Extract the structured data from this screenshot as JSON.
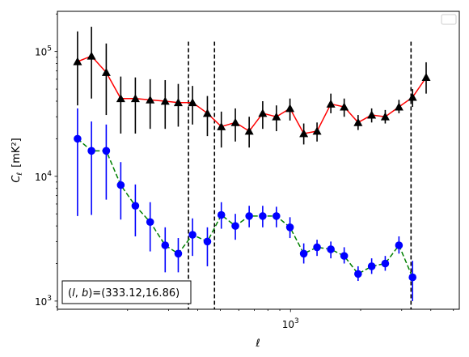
{
  "chart_data": {
    "type": "scatter",
    "title": "",
    "xlabel": "ℓ",
    "ylabel": "C",
    "ylabel_sub": "ℓ",
    "ylabel_unit": "[mK²]",
    "xscale": "log",
    "yscale": "log",
    "xlim": [
      100,
      5300
    ],
    "ylim": [
      860,
      210000
    ],
    "x_tick_labels": [
      {
        "value": 1000,
        "base": "10",
        "exp": "3"
      }
    ],
    "y_tick_labels": [
      {
        "value": 1000,
        "base": "10",
        "exp": "3"
      },
      {
        "value": 10000,
        "base": "10",
        "exp": "4"
      },
      {
        "value": 100000,
        "base": "10",
        "exp": "5"
      }
    ],
    "grid": false,
    "legend": "top-right (empty)",
    "annotation": {
      "text_prefix": "(",
      "text_l": "l",
      "text_mid": ", ",
      "text_b": "b",
      "text_suffix": ")=(333.12,16.86)",
      "position": "bottom-left"
    },
    "vertical_lines": [
      {
        "x": 365,
        "y_top": 120000,
        "color": "#000000",
        "style": "dashed"
      },
      {
        "x": 472,
        "y_top": 120000,
        "color": "#000000",
        "style": "dashed"
      },
      {
        "x": 3290,
        "y_top": 120000,
        "color": "#000000",
        "style": "dashed"
      }
    ],
    "series": [
      {
        "marker": "triangle",
        "color": "#000000",
        "line_color": "#ff0000",
        "line_style": "solid",
        "points": [
          {
            "x": 122,
            "y": 83000,
            "lo": 37000,
            "hi": 145000
          },
          {
            "x": 140,
            "y": 92000,
            "lo": 42000,
            "hi": 158000
          },
          {
            "x": 162,
            "y": 68000,
            "lo": 31000,
            "hi": 116000
          },
          {
            "x": 187,
            "y": 42000,
            "lo": 22000,
            "hi": 63000
          },
          {
            "x": 216,
            "y": 42000,
            "lo": 22000,
            "hi": 62000
          },
          {
            "x": 250,
            "y": 41000,
            "lo": 24000,
            "hi": 60000
          },
          {
            "x": 290,
            "y": 40000,
            "lo": 24000,
            "hi": 59000
          },
          {
            "x": 330,
            "y": 39000,
            "lo": 25000,
            "hi": 55000
          },
          {
            "x": 380,
            "y": 39000,
            "lo": 26000,
            "hi": 53000
          },
          {
            "x": 440,
            "y": 32000,
            "lo": 21000,
            "hi": 44000
          },
          {
            "x": 505,
            "y": 25000,
            "lo": 17000,
            "hi": 33000
          },
          {
            "x": 580,
            "y": 27000,
            "lo": 19000,
            "hi": 35000
          },
          {
            "x": 665,
            "y": 23000,
            "lo": 17000,
            "hi": 30000
          },
          {
            "x": 760,
            "y": 32000,
            "lo": 24000,
            "hi": 40000
          },
          {
            "x": 870,
            "y": 30000,
            "lo": 23000,
            "hi": 37000
          },
          {
            "x": 995,
            "y": 35000,
            "lo": 28000,
            "hi": 42000
          },
          {
            "x": 1140,
            "y": 22000,
            "lo": 18000,
            "hi": 26500
          },
          {
            "x": 1300,
            "y": 23000,
            "lo": 19000,
            "hi": 27000
          },
          {
            "x": 1490,
            "y": 38000,
            "lo": 32000,
            "hi": 46000
          },
          {
            "x": 1700,
            "y": 36000,
            "lo": 30000,
            "hi": 42000
          },
          {
            "x": 1950,
            "y": 27000,
            "lo": 23500,
            "hi": 31000
          },
          {
            "x": 2230,
            "y": 31000,
            "lo": 27000,
            "hi": 35000
          },
          {
            "x": 2550,
            "y": 30000,
            "lo": 26500,
            "hi": 34000
          },
          {
            "x": 2920,
            "y": 36000,
            "lo": 32000,
            "hi": 41000
          },
          {
            "x": 3340,
            "y": 43000,
            "lo": 36000,
            "hi": 50000
          },
          {
            "x": 3820,
            "y": 62000,
            "lo": 46000,
            "hi": 82000
          }
        ]
      },
      {
        "marker": "circle",
        "color": "#0000ff",
        "line_color": "#008000",
        "line_style": "dashed",
        "points": [
          {
            "x": 122,
            "y": 20000,
            "lo": 4800,
            "hi": 35000
          },
          {
            "x": 140,
            "y": 16000,
            "lo": 4900,
            "hi": 27500
          },
          {
            "x": 162,
            "y": 16000,
            "lo": 6500,
            "hi": 26000
          },
          {
            "x": 187,
            "y": 8500,
            "lo": 4500,
            "hi": 13000
          },
          {
            "x": 216,
            "y": 5800,
            "lo": 3300,
            "hi": 8600
          },
          {
            "x": 250,
            "y": 4300,
            "lo": 2500,
            "hi": 6200
          },
          {
            "x": 290,
            "y": 2800,
            "lo": 1700,
            "hi": 3900
          },
          {
            "x": 330,
            "y": 2400,
            "lo": 1700,
            "hi": 3200
          },
          {
            "x": 380,
            "y": 3400,
            "lo": 2300,
            "hi": 4600
          },
          {
            "x": 440,
            "y": 3000,
            "lo": 1900,
            "hi": 3900
          },
          {
            "x": 505,
            "y": 4900,
            "lo": 3800,
            "hi": 6200
          },
          {
            "x": 580,
            "y": 4000,
            "lo": 3100,
            "hi": 5000
          },
          {
            "x": 665,
            "y": 4800,
            "lo": 3900,
            "hi": 5800
          },
          {
            "x": 760,
            "y": 4800,
            "lo": 3900,
            "hi": 5800
          },
          {
            "x": 870,
            "y": 4800,
            "lo": 3900,
            "hi": 5700
          },
          {
            "x": 995,
            "y": 3900,
            "lo": 3200,
            "hi": 4700
          },
          {
            "x": 1140,
            "y": 2400,
            "lo": 2000,
            "hi": 2900
          },
          {
            "x": 1300,
            "y": 2700,
            "lo": 2300,
            "hi": 3100
          },
          {
            "x": 1490,
            "y": 2600,
            "lo": 2200,
            "hi": 3000
          },
          {
            "x": 1700,
            "y": 2300,
            "lo": 2000,
            "hi": 2700
          },
          {
            "x": 1950,
            "y": 1650,
            "lo": 1450,
            "hi": 1900
          },
          {
            "x": 2230,
            "y": 1900,
            "lo": 1650,
            "hi": 2200
          },
          {
            "x": 2550,
            "y": 2000,
            "lo": 1750,
            "hi": 2300
          },
          {
            "x": 2920,
            "y": 2800,
            "lo": 2400,
            "hi": 3300
          },
          {
            "x": 3340,
            "y": 1550,
            "lo": 1000,
            "hi": 2100
          }
        ]
      }
    ]
  }
}
